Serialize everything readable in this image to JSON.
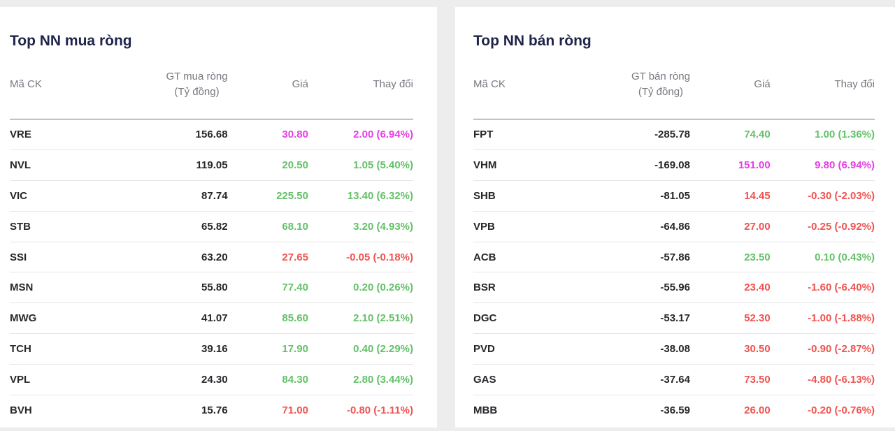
{
  "page": {
    "background": "#ededed"
  },
  "colors": {
    "title": "#20244a",
    "header_text": "#77777f",
    "header_border": "#6e6f88",
    "row_border": "#e5e5e7",
    "text": "#26262b",
    "ceiling": "#e53ee5",
    "up": "#63c168",
    "down": "#ef5350"
  },
  "panels": [
    {
      "title": "Top NN mua ròng",
      "columns": {
        "ticker": "Mã CK",
        "value_line1": "GT mua ròng",
        "value_line2": "(Tỷ đồng)",
        "price": "Giá",
        "change": "Thay đổi"
      },
      "rows": [
        {
          "ticker": "VRE",
          "value": "156.68",
          "price": "30.80",
          "change": "2.00 (6.94%)",
          "state": "ceiling"
        },
        {
          "ticker": "NVL",
          "value": "119.05",
          "price": "20.50",
          "change": "1.05 (5.40%)",
          "state": "up"
        },
        {
          "ticker": "VIC",
          "value": "87.74",
          "price": "225.50",
          "change": "13.40 (6.32%)",
          "state": "up"
        },
        {
          "ticker": "STB",
          "value": "65.82",
          "price": "68.10",
          "change": "3.20 (4.93%)",
          "state": "up"
        },
        {
          "ticker": "SSI",
          "value": "63.20",
          "price": "27.65",
          "change": "-0.05 (-0.18%)",
          "state": "down"
        },
        {
          "ticker": "MSN",
          "value": "55.80",
          "price": "77.40",
          "change": "0.20 (0.26%)",
          "state": "up"
        },
        {
          "ticker": "MWG",
          "value": "41.07",
          "price": "85.60",
          "change": "2.10 (2.51%)",
          "state": "up"
        },
        {
          "ticker": "TCH",
          "value": "39.16",
          "price": "17.90",
          "change": "0.40 (2.29%)",
          "state": "up"
        },
        {
          "ticker": "VPL",
          "value": "24.30",
          "price": "84.30",
          "change": "2.80 (3.44%)",
          "state": "up"
        },
        {
          "ticker": "BVH",
          "value": "15.76",
          "price": "71.00",
          "change": "-0.80 (-1.11%)",
          "state": "down"
        }
      ]
    },
    {
      "title": "Top NN bán ròng",
      "columns": {
        "ticker": "Mã CK",
        "value_line1": "GT bán ròng",
        "value_line2": "(Tỷ đồng)",
        "price": "Giá",
        "change": "Thay đổi"
      },
      "rows": [
        {
          "ticker": "FPT",
          "value": "-285.78",
          "price": "74.40",
          "change": "1.00 (1.36%)",
          "state": "up"
        },
        {
          "ticker": "VHM",
          "value": "-169.08",
          "price": "151.00",
          "change": "9.80 (6.94%)",
          "state": "ceiling"
        },
        {
          "ticker": "SHB",
          "value": "-81.05",
          "price": "14.45",
          "change": "-0.30 (-2.03%)",
          "state": "down"
        },
        {
          "ticker": "VPB",
          "value": "-64.86",
          "price": "27.00",
          "change": "-0.25 (-0.92%)",
          "state": "down"
        },
        {
          "ticker": "ACB",
          "value": "-57.86",
          "price": "23.50",
          "change": "0.10 (0.43%)",
          "state": "up"
        },
        {
          "ticker": "BSR",
          "value": "-55.96",
          "price": "23.40",
          "change": "-1.60 (-6.40%)",
          "state": "down"
        },
        {
          "ticker": "DGC",
          "value": "-53.17",
          "price": "52.30",
          "change": "-1.00 (-1.88%)",
          "state": "down"
        },
        {
          "ticker": "PVD",
          "value": "-38.08",
          "price": "30.50",
          "change": "-0.90 (-2.87%)",
          "state": "down"
        },
        {
          "ticker": "GAS",
          "value": "-37.64",
          "price": "73.50",
          "change": "-4.80 (-6.13%)",
          "state": "down"
        },
        {
          "ticker": "MBB",
          "value": "-36.59",
          "price": "26.00",
          "change": "-0.20 (-0.76%)",
          "state": "down"
        }
      ]
    }
  ]
}
